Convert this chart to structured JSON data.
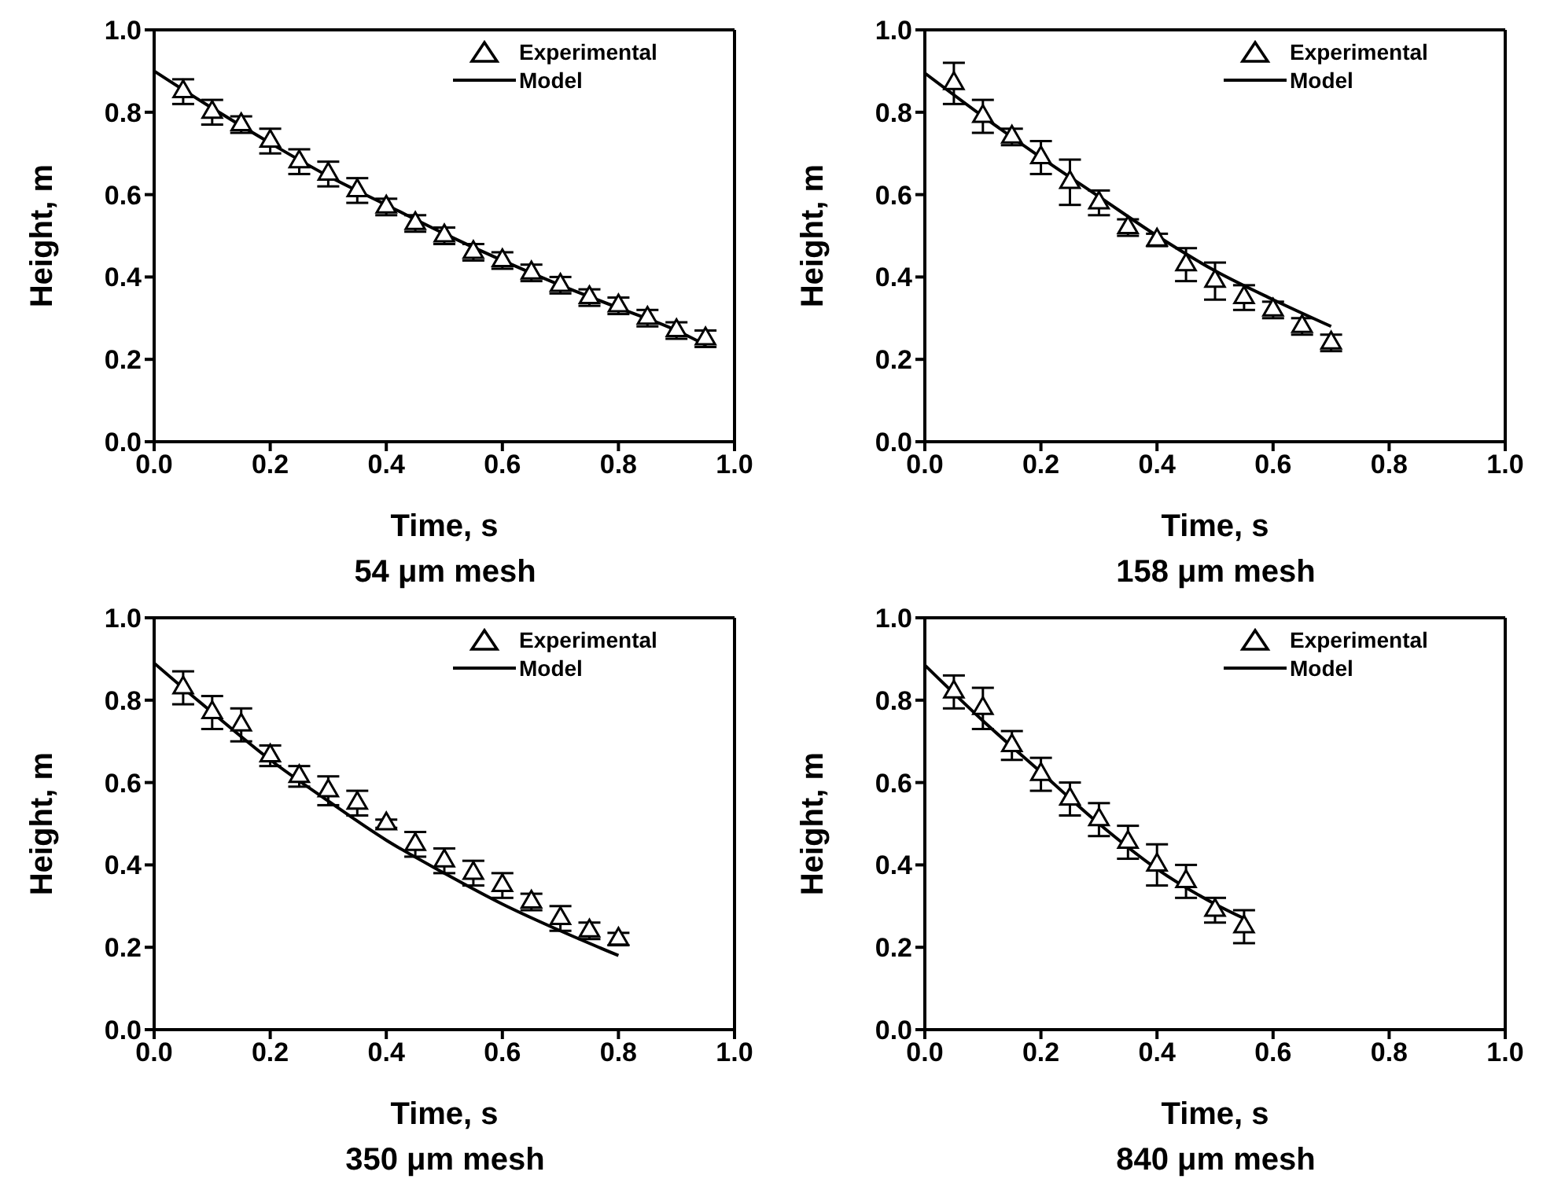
{
  "chart_data": [
    {
      "type": "scatter",
      "title": "54 μm mesh",
      "xlabel": "Time, s",
      "ylabel": "Height, m",
      "xlim": [
        0,
        1
      ],
      "ylim": [
        0,
        1
      ],
      "xticks": [
        {
          "value": 0,
          "label": "0.0"
        },
        {
          "value": 0.2,
          "label": "0.2"
        },
        {
          "value": 0.4,
          "label": "0.4"
        },
        {
          "value": 0.6,
          "label": "0.6"
        },
        {
          "value": 0.8,
          "label": "0.8"
        },
        {
          "value": 1,
          "label": "1.0"
        }
      ],
      "yticks": [
        {
          "value": 0,
          "label": "0.0"
        },
        {
          "value": 0.2,
          "label": "0.2"
        },
        {
          "value": 0.4,
          "label": "0.4"
        },
        {
          "value": 0.6,
          "label": "0.6"
        },
        {
          "value": 0.8,
          "label": "0.8"
        },
        {
          "value": 1,
          "label": "1.0"
        }
      ],
      "legend": "top right",
      "series": [
        {
          "name": "Experimental",
          "type": "scatter",
          "marker": "triangle",
          "color": "#000000",
          "x": [
            0.05,
            0.1,
            0.15,
            0.2,
            0.25,
            0.3,
            0.35,
            0.4,
            0.45,
            0.5,
            0.55,
            0.6,
            0.65,
            0.7,
            0.75,
            0.8,
            0.85,
            0.9,
            0.95
          ],
          "values": [
            0.85,
            0.8,
            0.77,
            0.73,
            0.68,
            0.65,
            0.61,
            0.57,
            0.53,
            0.5,
            0.46,
            0.44,
            0.41,
            0.38,
            0.35,
            0.33,
            0.3,
            0.27,
            0.25
          ],
          "errors": [
            0.03,
            0.03,
            0.02,
            0.03,
            0.03,
            0.03,
            0.03,
            0.02,
            0.02,
            0.02,
            0.02,
            0.02,
            0.02,
            0.02,
            0.02,
            0.02,
            0.02,
            0.02,
            0.02
          ]
        },
        {
          "name": "Model",
          "type": "line",
          "marker": "none",
          "color": "#000000",
          "x": [
            0,
            0.1,
            0.2,
            0.3,
            0.4,
            0.5,
            0.6,
            0.7,
            0.8,
            0.9,
            0.95
          ],
          "values": [
            0.9,
            0.81,
            0.725,
            0.645,
            0.575,
            0.505,
            0.44,
            0.38,
            0.325,
            0.27,
            0.235
          ]
        }
      ]
    },
    {
      "type": "scatter",
      "title": "158 μm mesh",
      "xlabel": "Time, s",
      "ylabel": "Height, m",
      "xlim": [
        0,
        1
      ],
      "ylim": [
        0,
        1
      ],
      "xticks": [
        {
          "value": 0,
          "label": "0.0"
        },
        {
          "value": 0.2,
          "label": "0.2"
        },
        {
          "value": 0.4,
          "label": "0.4"
        },
        {
          "value": 0.6,
          "label": "0.6"
        },
        {
          "value": 0.8,
          "label": "0.8"
        },
        {
          "value": 1,
          "label": "1.0"
        }
      ],
      "yticks": [
        {
          "value": 0,
          "label": "0.0"
        },
        {
          "value": 0.2,
          "label": "0.2"
        },
        {
          "value": 0.4,
          "label": "0.4"
        },
        {
          "value": 0.6,
          "label": "0.6"
        },
        {
          "value": 0.8,
          "label": "0.8"
        },
        {
          "value": 1,
          "label": "1.0"
        }
      ],
      "legend": "top right",
      "series": [
        {
          "name": "Experimental",
          "type": "scatter",
          "marker": "triangle",
          "color": "#000000",
          "x": [
            0.05,
            0.1,
            0.15,
            0.2,
            0.25,
            0.3,
            0.35,
            0.4,
            0.45,
            0.5,
            0.55,
            0.6,
            0.65,
            0.7
          ],
          "values": [
            0.87,
            0.79,
            0.74,
            0.69,
            0.63,
            0.58,
            0.52,
            0.49,
            0.43,
            0.39,
            0.35,
            0.32,
            0.28,
            0.24
          ],
          "errors": [
            0.05,
            0.04,
            0.02,
            0.04,
            0.055,
            0.03,
            0.02,
            0.015,
            0.04,
            0.045,
            0.03,
            0.02,
            0.02,
            0.02
          ]
        },
        {
          "name": "Model",
          "type": "line",
          "marker": "none",
          "color": "#000000",
          "x": [
            0,
            0.1,
            0.2,
            0.3,
            0.4,
            0.5,
            0.6,
            0.7
          ],
          "values": [
            0.895,
            0.79,
            0.69,
            0.595,
            0.5,
            0.415,
            0.345,
            0.28
          ]
        }
      ]
    },
    {
      "type": "scatter",
      "title": "350 μm mesh",
      "xlabel": "Time, s",
      "ylabel": "Height, m",
      "xlim": [
        0,
        1
      ],
      "ylim": [
        0,
        1
      ],
      "xticks": [
        {
          "value": 0,
          "label": "0.0"
        },
        {
          "value": 0.2,
          "label": "0.2"
        },
        {
          "value": 0.4,
          "label": "0.4"
        },
        {
          "value": 0.6,
          "label": "0.6"
        },
        {
          "value": 0.8,
          "label": "0.8"
        },
        {
          "value": 1,
          "label": "1.0"
        }
      ],
      "yticks": [
        {
          "value": 0,
          "label": "0.0"
        },
        {
          "value": 0.2,
          "label": "0.2"
        },
        {
          "value": 0.4,
          "label": "0.4"
        },
        {
          "value": 0.6,
          "label": "0.6"
        },
        {
          "value": 0.8,
          "label": "0.8"
        },
        {
          "value": 1,
          "label": "1.0"
        }
      ],
      "legend": "top right",
      "series": [
        {
          "name": "Experimental",
          "type": "scatter",
          "marker": "triangle",
          "color": "#000000",
          "x": [
            0.05,
            0.1,
            0.15,
            0.2,
            0.25,
            0.3,
            0.35,
            0.4,
            0.45,
            0.5,
            0.55,
            0.6,
            0.65,
            0.7,
            0.75,
            0.8
          ],
          "values": [
            0.83,
            0.77,
            0.74,
            0.665,
            0.615,
            0.58,
            0.55,
            0.5,
            0.45,
            0.41,
            0.38,
            0.35,
            0.31,
            0.27,
            0.24,
            0.22
          ],
          "errors": [
            0.04,
            0.04,
            0.04,
            0.025,
            0.025,
            0.035,
            0.03,
            0.01,
            0.03,
            0.03,
            0.03,
            0.03,
            0.02,
            0.03,
            0.02,
            0.015
          ]
        },
        {
          "name": "Model",
          "type": "line",
          "marker": "none",
          "color": "#000000",
          "x": [
            0,
            0.1,
            0.2,
            0.3,
            0.4,
            0.5,
            0.6,
            0.7,
            0.8
          ],
          "values": [
            0.89,
            0.77,
            0.655,
            0.555,
            0.46,
            0.38,
            0.305,
            0.24,
            0.18
          ]
        }
      ]
    },
    {
      "type": "scatter",
      "title": "840 μm mesh",
      "xlabel": "Time, s",
      "ylabel": "Height, m",
      "xlim": [
        0,
        1
      ],
      "ylim": [
        0,
        1
      ],
      "xticks": [
        {
          "value": 0,
          "label": "0.0"
        },
        {
          "value": 0.2,
          "label": "0.2"
        },
        {
          "value": 0.4,
          "label": "0.4"
        },
        {
          "value": 0.6,
          "label": "0.6"
        },
        {
          "value": 0.8,
          "label": "0.8"
        },
        {
          "value": 1,
          "label": "1.0"
        }
      ],
      "yticks": [
        {
          "value": 0,
          "label": "0.0"
        },
        {
          "value": 0.2,
          "label": "0.2"
        },
        {
          "value": 0.4,
          "label": "0.4"
        },
        {
          "value": 0.6,
          "label": "0.6"
        },
        {
          "value": 0.8,
          "label": "0.8"
        },
        {
          "value": 1,
          "label": "1.0"
        }
      ],
      "legend": "top right",
      "series": [
        {
          "name": "Experimental",
          "type": "scatter",
          "marker": "triangle",
          "color": "#000000",
          "x": [
            0.05,
            0.1,
            0.15,
            0.2,
            0.25,
            0.3,
            0.35,
            0.4,
            0.45,
            0.5,
            0.55
          ],
          "values": [
            0.82,
            0.78,
            0.69,
            0.62,
            0.56,
            0.51,
            0.455,
            0.4,
            0.36,
            0.29,
            0.25
          ],
          "errors": [
            0.04,
            0.05,
            0.035,
            0.04,
            0.04,
            0.04,
            0.04,
            0.05,
            0.04,
            0.03,
            0.04
          ]
        },
        {
          "name": "Model",
          "type": "line",
          "marker": "none",
          "color": "#000000",
          "x": [
            0,
            0.1,
            0.2,
            0.3,
            0.4,
            0.5,
            0.55
          ],
          "values": [
            0.885,
            0.75,
            0.625,
            0.5,
            0.39,
            0.305,
            0.27
          ]
        }
      ]
    }
  ]
}
